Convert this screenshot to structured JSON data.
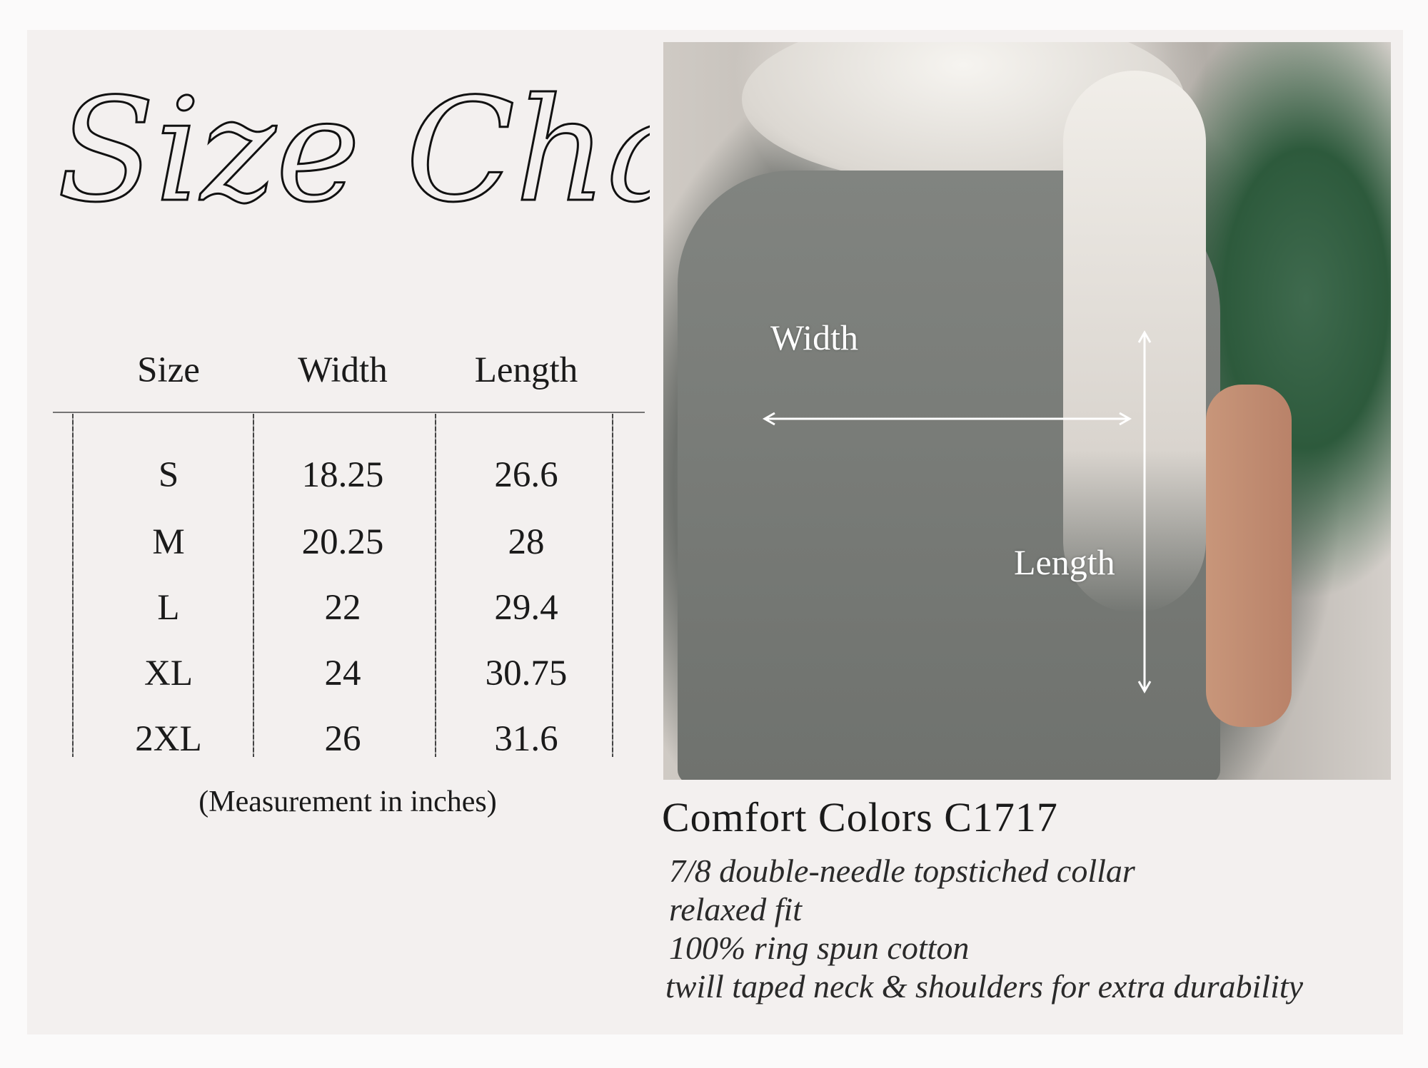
{
  "title": "Size Chart",
  "table": {
    "headers": [
      "Size",
      "Width",
      "Length"
    ],
    "rows": [
      [
        "S",
        "18.25",
        "26.6"
      ],
      [
        "M",
        "20.25",
        "28"
      ],
      [
        "L",
        "22",
        "29.4"
      ],
      [
        "XL",
        "24",
        "30.75"
      ],
      [
        "2XL",
        "26",
        "31.6"
      ]
    ],
    "note": "(Measurement in inches)"
  },
  "photo": {
    "width_label": "Width",
    "length_label": "Length"
  },
  "product": {
    "name": "Comfort Colors C1717",
    "features": [
      "7/8 double-needle topstiched collar",
      "relaxed fit",
      "100% ring spun cotton",
      "twill taped neck & shoulders for extra durability"
    ]
  }
}
